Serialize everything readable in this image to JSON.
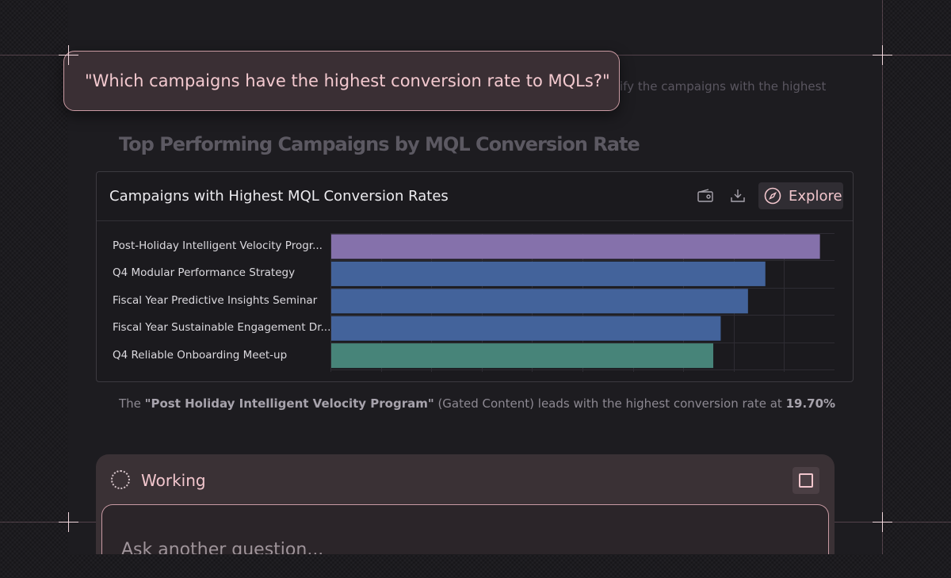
{
  "background_text": {
    "ghost_line": "ify the campaigns with the highest",
    "section_title": "Top Performing Campaigns by MQL Conversion Rate"
  },
  "query": {
    "text": "\"Which campaigns have the highest conversion rate to MQLs?\""
  },
  "chart_card": {
    "title": "Campaigns with Highest MQL Conversion Rates",
    "explore_label": "Explore",
    "icons": [
      "wallet-icon",
      "download-icon",
      "compass-icon"
    ]
  },
  "chart_data": {
    "type": "bar",
    "orientation": "horizontal",
    "categories": [
      "Post-Holiday Intelligent Velocity Progr...",
      "Q4 Modular Performance Strategy",
      "Fiscal Year Predictive Insights Seminar",
      "Fiscal Year Sustainable Engagement Dr...",
      "Q4 Reliable Onboarding Meet-up"
    ],
    "values": [
      19.7,
      17.5,
      16.8,
      15.7,
      15.4
    ],
    "colors": [
      "#8571ab",
      "#43639b",
      "#43639b",
      "#43639b",
      "#478479"
    ],
    "xlim": [
      0,
      20
    ],
    "grid": true,
    "title": "",
    "xlabel": "",
    "ylabel": ""
  },
  "summary": {
    "prefix": "The ",
    "campaign": "\"Post Holiday Intelligent Velocity Program\"",
    "middle": " (Gated Content) leads with the highest conversion rate at ",
    "rate": "19.70%"
  },
  "status": {
    "label": "Working"
  },
  "input": {
    "placeholder": "Ask another question..."
  },
  "colors": {
    "accent_pink": "#f2c6cd",
    "card_bg": "#1b1a1e",
    "working_bg": "#3a3135"
  }
}
